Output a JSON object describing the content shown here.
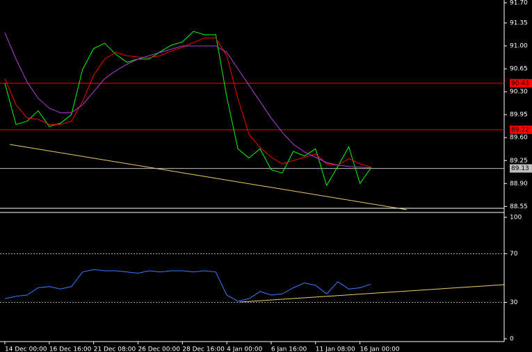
{
  "chart_data": [
    {
      "type": "line",
      "series": [
        {
          "color": "#00ff00",
          "values": [
            90.43,
            89.8,
            89.85,
            90.01,
            89.77,
            89.82,
            89.95,
            90.64,
            90.96,
            91.04,
            90.87,
            90.75,
            90.8,
            90.8,
            90.91,
            91.01,
            91.06,
            91.22,
            91.17,
            91.17,
            90.22,
            89.43,
            89.29,
            89.43,
            89.11,
            89.06,
            89.39,
            89.32,
            89.43,
            88.87,
            89.16,
            89.46,
            88.9,
            89.14,
            null,
            null,
            null,
            null,
            null,
            null,
            null,
            null,
            null,
            null,
            null
          ]
        },
        {
          "color": "#ff0000",
          "values": [
            90.5,
            90.1,
            89.9,
            89.88,
            89.8,
            89.8,
            89.85,
            90.15,
            90.55,
            90.8,
            90.9,
            90.85,
            90.83,
            90.82,
            90.85,
            90.92,
            90.98,
            91.05,
            91.12,
            91.12,
            90.85,
            90.2,
            89.65,
            89.45,
            89.3,
            89.2,
            89.25,
            89.3,
            89.35,
            89.2,
            89.18,
            89.28,
            89.2,
            89.15,
            null,
            null,
            null,
            null,
            null,
            null,
            null,
            null,
            null,
            null,
            null
          ]
        },
        {
          "color": "#b040d8",
          "values": [
            91.2,
            90.8,
            90.45,
            90.2,
            90.05,
            89.98,
            89.98,
            90.1,
            90.3,
            90.5,
            90.62,
            90.72,
            90.8,
            90.85,
            90.9,
            90.95,
            91.0,
            91.0,
            91.0,
            91.0,
            90.9,
            90.65,
            90.4,
            90.15,
            89.9,
            89.68,
            89.5,
            89.38,
            89.3,
            89.22,
            89.18,
            89.16,
            89.15,
            89.14,
            null,
            null,
            null,
            null,
            null,
            null,
            null,
            null,
            null,
            null,
            null
          ]
        }
      ],
      "ylim": [
        88.49,
        91.7
      ],
      "yticks": [
        88.55,
        {
          "value": 88.9,
          "label": "88.90"
        },
        89.25,
        {
          "value": 89.6,
          "label": "89.60"
        },
        89.95,
        {
          "value": 90.3,
          "label": "90.30"
        },
        90.65,
        {
          "value": 91.0,
          "label": "91.00"
        },
        91.35,
        {
          "value": 91.7,
          "label": "91.70"
        }
      ],
      "levels": [
        {
          "value": 90.43,
          "color": "#ff0000"
        },
        {
          "value": 89.72,
          "color": "#ff0000"
        },
        {
          "value": 89.13,
          "color": "#c0c0c0"
        }
      ]
    },
    {
      "type": "line",
      "categories": [
        "14 Dec 00:00",
        null,
        null,
        null,
        "16 Dec 16:00",
        null,
        null,
        null,
        "21 Dec 08:00",
        null,
        null,
        null,
        "26 Dec 00:00",
        null,
        null,
        null,
        "28 Dec 16:00",
        null,
        null,
        null,
        "4 Jan 00:00",
        null,
        null,
        null,
        "6 Jan 16:00",
        null,
        null,
        null,
        "11 Jan 08:00",
        null,
        null,
        null,
        "16 Jan 00:00",
        null,
        null,
        null,
        null,
        null,
        null,
        null,
        null,
        null,
        null,
        null,
        null
      ],
      "series": [
        {
          "color": "#3a7bff",
          "values": [
            33,
            35,
            36,
            42,
            43,
            41,
            43,
            55,
            57,
            56,
            56,
            55,
            54,
            56,
            55,
            56,
            56,
            55,
            56,
            55,
            36,
            31,
            33,
            39,
            36,
            37,
            42,
            46,
            44,
            37,
            47,
            41,
            42,
            45,
            null,
            null,
            null,
            null,
            null,
            null,
            null,
            null,
            null,
            null,
            null
          ]
        }
      ],
      "ylim": [
        0,
        100
      ],
      "yticks": [
        0,
        30,
        70,
        100
      ]
    }
  ]
}
